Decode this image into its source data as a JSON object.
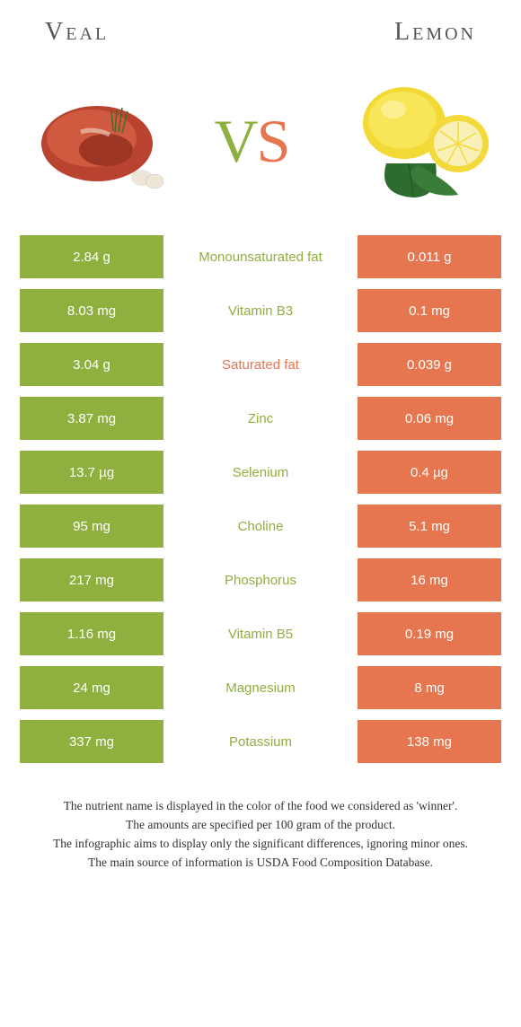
{
  "colors": {
    "left": "#8faf3f",
    "right": "#e57650",
    "vs_left": "#8faf3f",
    "vs_right": "#e57650"
  },
  "header": {
    "left": "Veal",
    "right": "Lemon"
  },
  "vs": {
    "v": "V",
    "s": "S"
  },
  "rows": [
    {
      "left": "2.84 g",
      "mid": "Monounsaturated fat",
      "right": "0.011 g",
      "winner": "left"
    },
    {
      "left": "8.03 mg",
      "mid": "Vitamin B3",
      "right": "0.1 mg",
      "winner": "left"
    },
    {
      "left": "3.04 g",
      "mid": "Saturated fat",
      "right": "0.039 g",
      "winner": "right"
    },
    {
      "left": "3.87 mg",
      "mid": "Zinc",
      "right": "0.06 mg",
      "winner": "left"
    },
    {
      "left": "13.7 µg",
      "mid": "Selenium",
      "right": "0.4 µg",
      "winner": "left"
    },
    {
      "left": "95 mg",
      "mid": "Choline",
      "right": "5.1 mg",
      "winner": "left"
    },
    {
      "left": "217 mg",
      "mid": "Phosphorus",
      "right": "16 mg",
      "winner": "left"
    },
    {
      "left": "1.16 mg",
      "mid": "Vitamin B5",
      "right": "0.19 mg",
      "winner": "left"
    },
    {
      "left": "24 mg",
      "mid": "Magnesium",
      "right": "8 mg",
      "winner": "left"
    },
    {
      "left": "337 mg",
      "mid": "Potassium",
      "right": "138 mg",
      "winner": "left"
    }
  ],
  "footer": {
    "line1": "The nutrient name is displayed in the color of the food we considered as 'winner'.",
    "line2": "The amounts are specified per 100 gram of the product.",
    "line3": "The infographic aims to display only the significant differences, ignoring minor ones.",
    "line4": "The main source of information is USDA Food Composition Database."
  }
}
